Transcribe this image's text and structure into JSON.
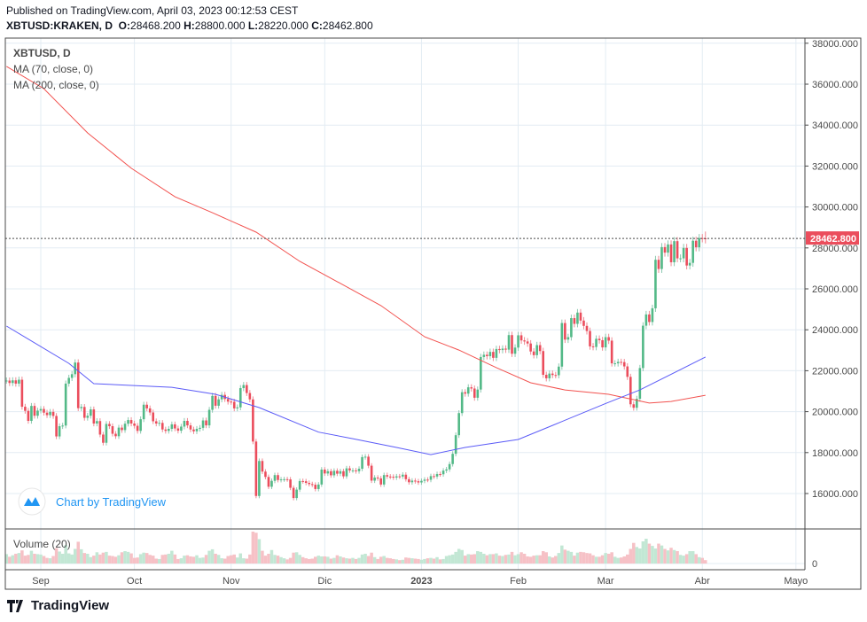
{
  "header": {
    "published": "Published on TradingView.com, April 03, 2023 00:12:53 CEST",
    "symbol": "XBTUSD:KRAKEN, D",
    "o_label": "O:",
    "o": "28468.200",
    "h_label": "H:",
    "h": "28800.000",
    "l_label": "L:",
    "l": "28220.000",
    "c_label": "C:",
    "c": "28462.800"
  },
  "legend": {
    "title": "XBTUSD, D",
    "ma1": "MA (70, close, 0)",
    "ma2": "MA (200, close, 0)",
    "volume": "Volume (20)"
  },
  "watermark": "Chart by TradingView",
  "footer_brand": "TradingView",
  "colors": {
    "up": "#53b987",
    "down": "#eb4d5c",
    "up_vol": "#c2e7d4",
    "down_vol": "#f6c1c6",
    "ma70": "#5b5bf7",
    "ma200": "#f2524f",
    "grid": "#e3ecf3",
    "price_tag": "#eb4d5c"
  },
  "chart_data": {
    "type": "candlestick",
    "ylim": [
      14800,
      38400
    ],
    "grid": true,
    "price_ticks": [
      "16000.000",
      "18000.000",
      "20000.000",
      "22000.000",
      "24000.000",
      "26000.000",
      "28000.000",
      "30000.000",
      "32000.000",
      "34000.000",
      "36000.000",
      "38000.000"
    ],
    "volume_ticks": [
      "0"
    ],
    "time_ticks": [
      {
        "date": "2022-09-01",
        "label": "Sep"
      },
      {
        "date": "2022-10-01",
        "label": "Oct"
      },
      {
        "date": "2022-11-01",
        "label": "Nov"
      },
      {
        "date": "2022-12-01",
        "label": "Dic"
      },
      {
        "date": "2023-01-01",
        "label": "2023",
        "bold": true
      },
      {
        "date": "2023-02-01",
        "label": "Feb"
      },
      {
        "date": "2023-03-01",
        "label": "Mar"
      },
      {
        "date": "2023-04-01",
        "label": "Abr"
      },
      {
        "date": "2023-05-01",
        "label": "Mayo"
      }
    ],
    "last_price": "28462.800",
    "last_candle": {
      "date": "2023-04-02",
      "open": 28468.2,
      "high": 28800,
      "low": 28220,
      "close": 28462.8
    },
    "daily": [
      {
        "month": "2022-08",
        "first_day": 21,
        "close": [
          21520,
          21400,
          21530,
          21370,
          21560,
          20240,
          20040,
          19550,
          20280,
          19800,
          20050
        ],
        "volume": [
          2500,
          1800,
          2200,
          2600,
          2800,
          3500,
          2100,
          2300,
          3400,
          2600,
          2500
        ]
      },
      {
        "month": "2022-09",
        "first_day": 1,
        "close": [
          20130,
          19950,
          19830,
          19990,
          19790,
          18790,
          19290,
          19320,
          21370,
          21650,
          21830,
          22400,
          20170,
          20230,
          19700,
          19800,
          20110,
          19420,
          19540,
          18880,
          18480,
          19400,
          19290,
          18920,
          18800,
          19220,
          19100,
          19410,
          19590,
          19420
        ],
        "volume": [
          2400,
          2000,
          1500,
          1400,
          2000,
          4100,
          3200,
          2600,
          4900,
          2700,
          2400,
          3900,
          5800,
          3800,
          2800,
          2600,
          1700,
          2100,
          3000,
          2400,
          2900,
          3100,
          2100,
          2000,
          1800,
          2200,
          3000,
          3300,
          3100,
          2700
        ]
      },
      {
        "month": "2022-10",
        "first_day": 1,
        "close": [
          19310,
          19060,
          19630,
          20340,
          20160,
          19960,
          19530,
          19420,
          19450,
          19130,
          19060,
          19160,
          19380,
          19180,
          19070,
          19270,
          19550,
          19330,
          19130,
          19040,
          19160,
          19210,
          19570,
          19330,
          20090,
          20770,
          20290,
          20600,
          20820,
          20620,
          20490
        ],
        "volume": [
          1500,
          1600,
          2500,
          2900,
          2800,
          2300,
          2100,
          1300,
          1200,
          2300,
          2400,
          2600,
          3400,
          2400,
          1200,
          1400,
          2100,
          2200,
          1900,
          1800,
          2200,
          1500,
          1600,
          2300,
          3400,
          3800,
          2600,
          2300,
          1400,
          1300,
          2000
        ]
      },
      {
        "month": "2022-11",
        "first_day": 1,
        "close": [
          20480,
          20160,
          20210,
          21150,
          21300,
          20910,
          20600,
          18540,
          15880,
          17590,
          17070,
          16810,
          16330,
          16620,
          16900,
          16660,
          16690,
          16700,
          16690,
          16280,
          15780,
          16190,
          16610,
          16600,
          16520,
          16460,
          16430,
          16220,
          16440,
          17170
        ],
        "volume": [
          2200,
          2400,
          1600,
          2700,
          1400,
          1300,
          2400,
          8500,
          8200,
          6500,
          3400,
          2100,
          2600,
          3600,
          2300,
          2100,
          1700,
          1400,
          1100,
          1500,
          2900,
          3000,
          2300,
          1700,
          1400,
          1200,
          1300,
          1800,
          2100,
          1900
        ]
      },
      {
        "month": "2022-12",
        "first_day": 1,
        "close": [
          16980,
          17090,
          16890,
          17110,
          16970,
          17090,
          16840,
          17230,
          17130,
          17130,
          17090,
          17210,
          17780,
          17800,
          17360,
          16630,
          16780,
          16740,
          16440,
          16900,
          16830,
          16820,
          16780,
          16840,
          16830,
          16920,
          16700,
          16550,
          16630,
          16600,
          16540
        ],
        "volume": [
          1900,
          1800,
          1300,
          1500,
          2200,
          1900,
          1600,
          1400,
          1300,
          1500,
          1200,
          1500,
          2400,
          2600,
          2000,
          2900,
          1700,
          1200,
          1800,
          2000,
          1500,
          1400,
          1200,
          1100,
          900,
          1000,
          1600,
          1500,
          1400,
          1300,
          1200
        ]
      },
      {
        "month": "2023-01",
        "first_day": 1,
        "close": [
          16620,
          16680,
          16670,
          16850,
          16830,
          16950,
          16940,
          17120,
          17180,
          17440,
          17940,
          18850,
          19930,
          20950,
          20880,
          21190,
          21130,
          20680,
          21080,
          22670,
          22780,
          22710,
          22920,
          22630,
          23060,
          23010,
          23080,
          23030,
          23740,
          22830,
          23130
        ],
        "volume": [
          1000,
          1200,
          1400,
          1500,
          1300,
          1700,
          1100,
          1200,
          2000,
          2200,
          2400,
          3100,
          3900,
          3600,
          2100,
          2500,
          2400,
          2500,
          3300,
          3100,
          2600,
          2200,
          2500,
          2500,
          2700,
          2100,
          2000,
          2300,
          2400,
          3100,
          2200
        ]
      },
      {
        "month": "2023-02",
        "first_day": 1,
        "close": [
          23730,
          23480,
          23430,
          23330,
          22940,
          22760,
          23250,
          22960,
          21800,
          21630,
          21860,
          21790,
          21780,
          22200,
          24330,
          23520,
          23640,
          24570,
          24290,
          24840,
          24450,
          24190,
          23940,
          23190,
          23160,
          23560,
          23490,
          23140
        ],
        "volume": [
          2500,
          3000,
          2600,
          1900,
          1800,
          2100,
          2200,
          2200,
          3300,
          3000,
          1900,
          1600,
          2000,
          2800,
          4800,
          3700,
          3400,
          3100,
          2100,
          2900,
          3100,
          3000,
          2800,
          2700,
          2200,
          1800,
          1800,
          2200
        ]
      },
      {
        "month": "2023-03",
        "first_day": 1,
        "close": [
          23640,
          23470,
          22360,
          22360,
          22430,
          22420,
          22210,
          21700,
          20360,
          20190,
          20630,
          22130,
          24200,
          24750,
          24380,
          25050,
          27420,
          26970,
          28040,
          27770,
          28170,
          27300,
          28330,
          27490,
          27490,
          28000,
          27140,
          27270,
          28350,
          28030,
          28480
        ],
        "volume": [
          2800,
          2600,
          3000,
          1800,
          1500,
          1600,
          1900,
          2400,
          3900,
          5500,
          4400,
          4000,
          5900,
          6600,
          5300,
          4700,
          4000,
          5300,
          4800,
          3900,
          3500,
          4200,
          3600,
          3300,
          2300,
          2100,
          2500,
          3300,
          3300,
          2500,
          1700
        ]
      },
      {
        "month": "2023-04",
        "first_day": 1,
        "close": [
          28470,
          28462.8
        ],
        "volume": [
          1500,
          900
        ]
      }
    ],
    "ma70": [
      [
        "2022-08-21",
        24180
      ],
      [
        "2022-09-10",
        22360
      ],
      [
        "2022-09-18",
        21370
      ],
      [
        "2022-10-13",
        21190
      ],
      [
        "2022-10-27",
        20850
      ],
      [
        "2022-11-10",
        20200
      ],
      [
        "2022-11-29",
        19000
      ],
      [
        "2022-12-10",
        18680
      ],
      [
        "2022-12-24",
        18250
      ],
      [
        "2023-01-04",
        17900
      ],
      [
        "2023-01-15",
        18250
      ],
      [
        "2023-02-01",
        18640
      ],
      [
        "2023-02-12",
        19330
      ],
      [
        "2023-03-01",
        20400
      ],
      [
        "2023-03-12",
        21060
      ],
      [
        "2023-04-02",
        22670
      ]
    ],
    "ma200": [
      [
        "2022-08-21",
        36870
      ],
      [
        "2022-09-02",
        35780
      ],
      [
        "2022-09-16",
        33620
      ],
      [
        "2022-09-30",
        31890
      ],
      [
        "2022-10-14",
        30500
      ],
      [
        "2022-10-26",
        29720
      ],
      [
        "2022-11-09",
        28770
      ],
      [
        "2022-11-23",
        27340
      ],
      [
        "2022-12-05",
        26350
      ],
      [
        "2022-12-19",
        25180
      ],
      [
        "2023-01-02",
        23660
      ],
      [
        "2023-01-13",
        23010
      ],
      [
        "2023-01-25",
        22150
      ],
      [
        "2023-02-05",
        21410
      ],
      [
        "2023-02-16",
        21060
      ],
      [
        "2023-03-02",
        20850
      ],
      [
        "2023-03-15",
        20420
      ],
      [
        "2023-03-22",
        20500
      ],
      [
        "2023-04-02",
        20800
      ]
    ]
  }
}
